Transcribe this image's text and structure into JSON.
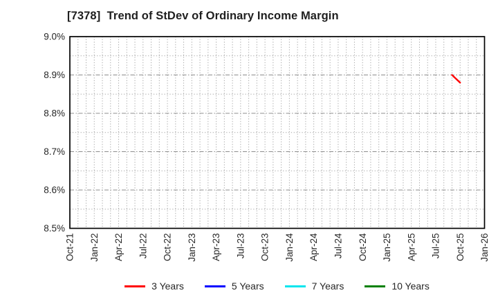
{
  "chart_data": {
    "type": "line",
    "title": "[7378]  Trend of StDev of Ordinary Income Margin",
    "xlabel": "",
    "ylabel": "",
    "y_axis": {
      "min": 8.5,
      "max": 9.0,
      "major_step": 0.1,
      "minor_step": 0.05,
      "unit": "%",
      "tick_labels": [
        "9.0%",
        "8.9%",
        "8.8%",
        "8.7%",
        "8.6%",
        "8.5%"
      ]
    },
    "x_axis": {
      "tick_labels": [
        "Oct-21",
        "Jan-22",
        "Apr-22",
        "Jul-22",
        "Oct-22",
        "Jan-23",
        "Apr-23",
        "Jul-23",
        "Oct-23",
        "Jan-24",
        "Apr-24",
        "Jul-24",
        "Oct-24",
        "Jan-25",
        "Apr-25",
        "Jul-25",
        "Oct-25",
        "Jan-26"
      ],
      "minor_gridline_interval": "monthly"
    },
    "grid": {
      "vertical": "dotted",
      "horizontal_major": "dash-dot",
      "horizontal_minor": "dotted"
    },
    "series": [
      {
        "name": "3 Years",
        "color": "#ff0000",
        "points": [
          {
            "month": "Sep-25",
            "value": 8.9
          },
          {
            "month": "Oct-25",
            "value": 8.88
          }
        ]
      },
      {
        "name": "5 Years",
        "color": "#0000ff",
        "points": []
      },
      {
        "name": "7 Years",
        "color": "#00e5ee",
        "points": []
      },
      {
        "name": "10 Years",
        "color": "#008000",
        "points": []
      }
    ],
    "legend": {
      "position": "bottom",
      "entries": [
        "3 Years",
        "5 Years",
        "7 Years",
        "10 Years"
      ]
    }
  }
}
